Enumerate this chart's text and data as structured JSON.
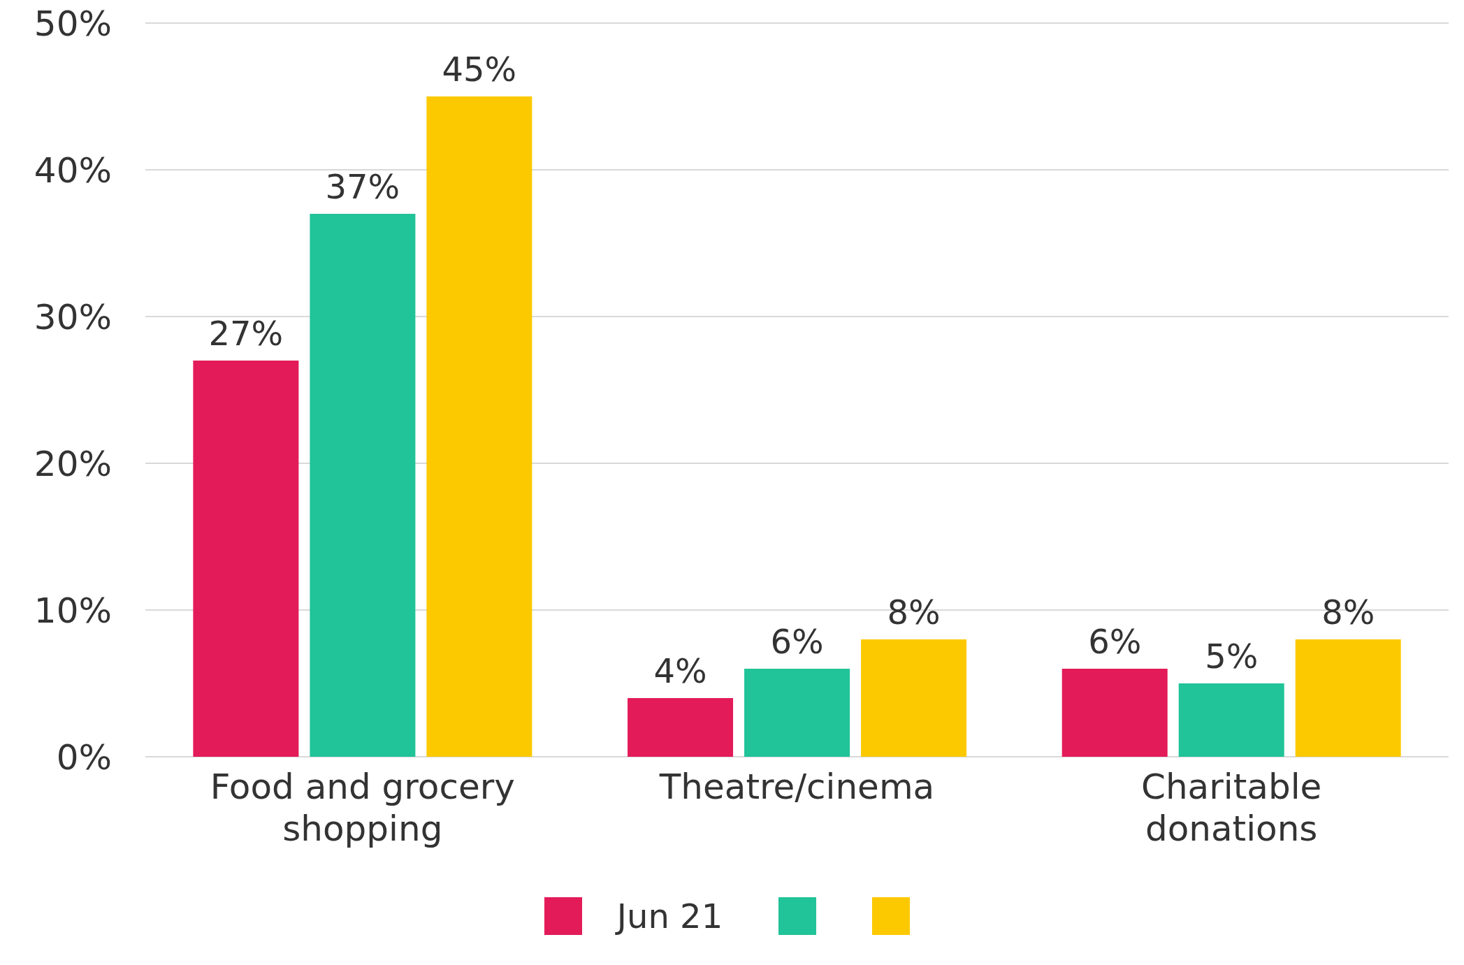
{
  "chart_data": {
    "type": "bar",
    "categories": [
      "Food and grocery shopping",
      "Theatre/cinema",
      "Charitable donations"
    ],
    "series": [
      {
        "name": "Jun 21",
        "color": "#e31b59",
        "values": [
          27,
          4,
          6
        ],
        "value_labels": [
          "27%",
          "4%",
          "6%"
        ]
      },
      {
        "color": "#21c398",
        "values": [
          37,
          6,
          5
        ],
        "value_labels": [
          "37%",
          "6%",
          "5%"
        ]
      },
      {
        "color": "#fcc900",
        "values": [
          45,
          8,
          8
        ],
        "value_labels": [
          "45%",
          "8%",
          "8%"
        ]
      }
    ],
    "ylim": [
      0,
      50
    ],
    "yticks": [
      {
        "value": 0,
        "label": "0%"
      },
      {
        "value": 10,
        "label": "10%"
      },
      {
        "value": 20,
        "label": "20%"
      },
      {
        "value": 30,
        "label": "30%"
      },
      {
        "value": 40,
        "label": "40%"
      },
      {
        "value": 50,
        "label": "50%"
      }
    ],
    "grid": "y",
    "legend": "bottom"
  }
}
